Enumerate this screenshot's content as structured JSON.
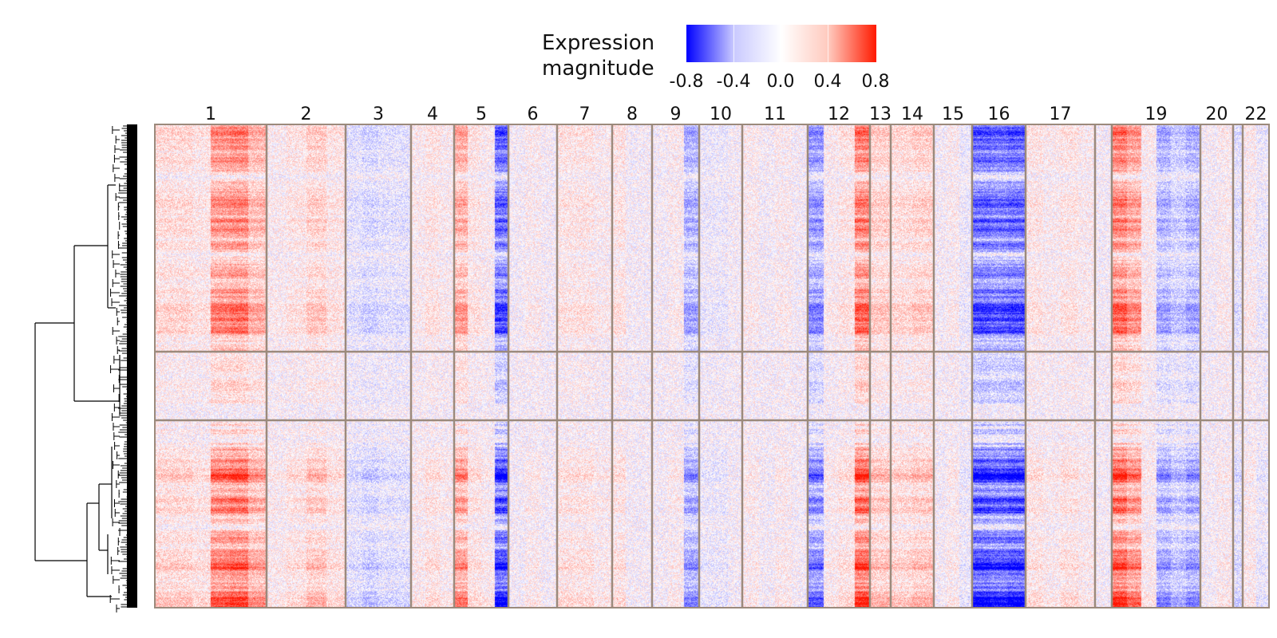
{
  "legend": {
    "title_line1": "Expression",
    "title_line2": "magnitude",
    "ticks": [
      "-0.8",
      "-0.4",
      "0.0",
      "0.4",
      "0.8"
    ],
    "low_color": "#0000ff",
    "mid_color": "#ffffff",
    "high_color": "#ff1a00"
  },
  "chart_data": {
    "type": "heatmap",
    "title": "",
    "color_scale": {
      "min": -0.8,
      "max": 0.8,
      "ticks": [
        -0.8,
        -0.4,
        0.0,
        0.4,
        0.8
      ]
    },
    "column_groups": [
      {
        "label": "1",
        "pattern": [
          0.15,
          0.15,
          0.1,
          0.45,
          0.5,
          0.3
        ]
      },
      {
        "label": "2",
        "pattern": [
          0.05,
          0.1,
          0.2,
          0.1
        ]
      },
      {
        "label": "3",
        "pattern": [
          -0.1,
          -0.15,
          -0.1,
          -0.1
        ]
      },
      {
        "label": "4",
        "pattern": [
          0.05,
          0.1,
          0.05
        ]
      },
      {
        "label": "5",
        "pattern": [
          0.35,
          0.1,
          0.05,
          -0.6
        ]
      },
      {
        "label": "6",
        "pattern": [
          0.0,
          0.05,
          0.0
        ]
      },
      {
        "label": "7",
        "pattern": [
          0.1,
          0.1,
          0.05
        ]
      },
      {
        "label": "8",
        "pattern": [
          0.1,
          0.0,
          0.0
        ]
      },
      {
        "label": "9",
        "pattern": [
          0.0,
          0.05,
          -0.3
        ]
      },
      {
        "label": "10",
        "pattern": [
          -0.05,
          -0.05,
          0.0
        ]
      },
      {
        "label": "11",
        "pattern": [
          0.05,
          0.0,
          0.05,
          0.0
        ]
      },
      {
        "label": "12",
        "pattern": [
          -0.4,
          0.05,
          0.1,
          0.55
        ]
      },
      {
        "label": "13",
        "pattern": [
          0.2
        ]
      },
      {
        "label": "14",
        "pattern": [
          0.15,
          0.2
        ]
      },
      {
        "label": "15",
        "pattern": [
          0.0,
          0.05,
          -0.05
        ]
      },
      {
        "label": "16",
        "pattern": [
          -0.6,
          -0.55,
          -0.6
        ]
      },
      {
        "label": "17",
        "pattern": [
          0.1,
          0.05,
          0.1,
          0.05
        ]
      },
      {
        "label": "",
        "pattern": [
          0.0
        ]
      },
      {
        "label": "19",
        "pattern": [
          0.55,
          0.4,
          0.05,
          -0.3,
          -0.2,
          -0.3
        ]
      },
      {
        "label": "20",
        "pattern": [
          0.0,
          0.05
        ]
      },
      {
        "label": "",
        "pattern": [
          -0.1
        ]
      },
      {
        "label": "22",
        "pattern": [
          0.05,
          -0.05
        ]
      }
    ],
    "row_groups": [
      {
        "id": "A",
        "strength": 0.8
      },
      {
        "id": "B",
        "strength": 0.25
      },
      {
        "id": "C",
        "strength": 1.0
      }
    ],
    "row_dendrogram": true,
    "grid": false
  }
}
